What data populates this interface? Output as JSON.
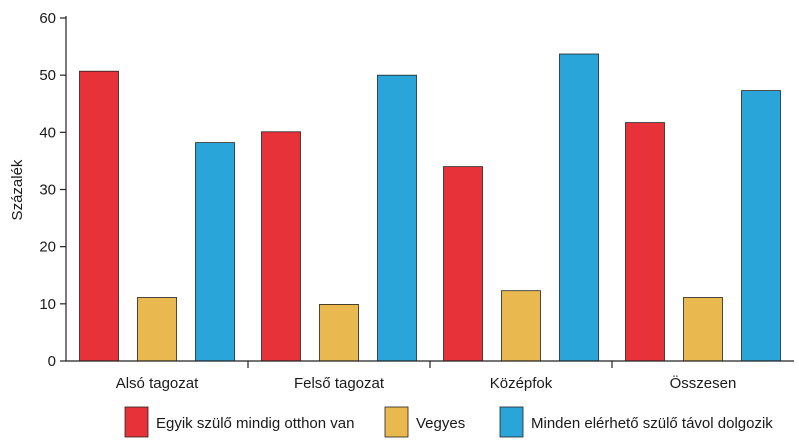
{
  "chart_data": {
    "type": "bar",
    "ylabel": "Százalék",
    "xlabel": "",
    "ylim": [
      0,
      60
    ],
    "yticks": [
      0,
      10,
      20,
      30,
      40,
      50,
      60
    ],
    "grid": false,
    "legend_position": "bottom",
    "categories": [
      "Alsó tagozat",
      "Felső tagozat",
      "Középfok",
      "Összesen"
    ],
    "series": [
      {
        "name": "Egyik szülő mindig otthon van",
        "color": "#e8323a",
        "values": [
          50.7,
          40.1,
          34.0,
          41.7
        ]
      },
      {
        "name": "Vegyes",
        "color": "#e9b94f",
        "values": [
          11.1,
          9.9,
          12.3,
          11.1
        ]
      },
      {
        "name": "Minden elérhető szülő távol dolgozik",
        "color": "#2aa5d9",
        "values": [
          38.2,
          50.0,
          53.7,
          47.3
        ]
      }
    ]
  }
}
